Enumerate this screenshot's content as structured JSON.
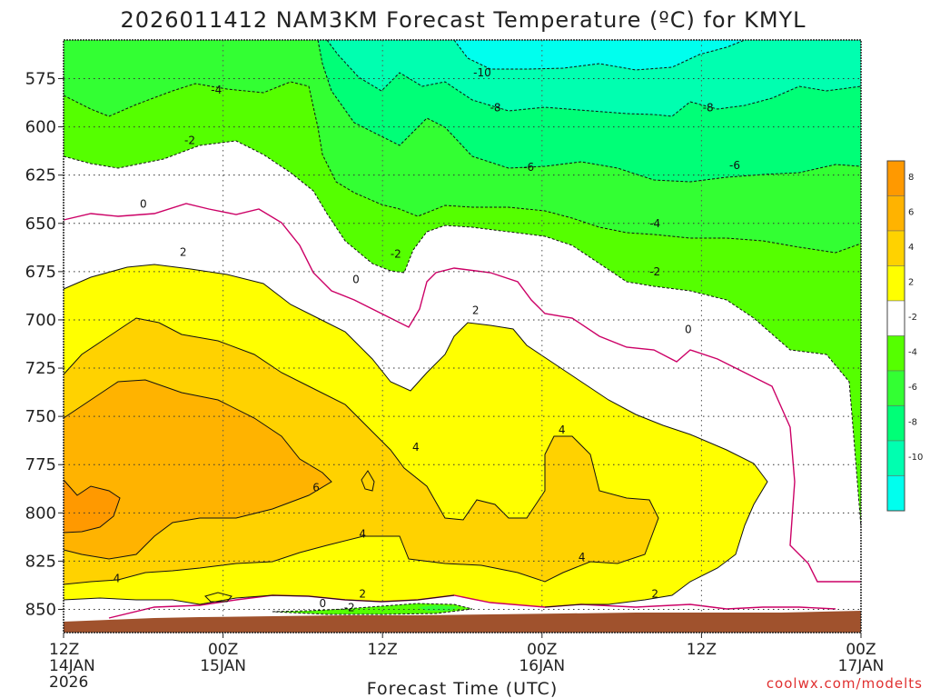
{
  "chart_data": {
    "type": "heatmap",
    "title": "2026011412 NAM3KM Forecast Temperature (ºC) for KMYL",
    "xlabel": "Forecast Time (UTC)",
    "ylabel": "",
    "credit": "coolwx.com/modelts",
    "y_axis": {
      "ticks": [
        575,
        600,
        625,
        650,
        675,
        700,
        725,
        750,
        775,
        800,
        825,
        850
      ],
      "range": [
        555,
        862
      ],
      "units": "hPa",
      "inverted": true
    },
    "x_axis": {
      "range_hours": [
        0,
        60
      ],
      "ticks": [
        {
          "hour": 0,
          "lines": [
            "12Z",
            "14JAN",
            "2026"
          ]
        },
        {
          "hour": 12,
          "lines": [
            "00Z",
            "15JAN"
          ]
        },
        {
          "hour": 24,
          "lines": [
            "12Z"
          ]
        },
        {
          "hour": 36,
          "lines": [
            "00Z",
            "16JAN"
          ]
        },
        {
          "hour": 48,
          "lines": [
            "12Z"
          ]
        },
        {
          "hour": 60,
          "lines": [
            "00Z",
            "17JAN"
          ]
        }
      ]
    },
    "grid": true,
    "legend": {
      "placement": "right",
      "bins": [
        {
          "label": "8",
          "color": "#ff9900"
        },
        {
          "label": "6",
          "color": "#ffb300"
        },
        {
          "label": "4",
          "color": "#ffd200"
        },
        {
          "label": "2",
          "color": "#ffff00"
        },
        {
          "label": "-2",
          "color": "#ffffff"
        },
        {
          "label": "-4",
          "color": "#55ff00"
        },
        {
          "label": "-6",
          "color": "#33ff33"
        },
        {
          "label": "-8",
          "color": "#00ff77"
        },
        {
          "label": "-10",
          "color": "#00ffb0"
        },
        {
          "label": "",
          "color": "#00ffee"
        }
      ]
    },
    "contour_labels": [
      {
        "text": "-10",
        "hour": 31.5,
        "p": 572
      },
      {
        "text": "-8",
        "hour": 32.5,
        "p": 590
      },
      {
        "text": "-8",
        "hour": 48.5,
        "p": 590
      },
      {
        "text": "-6",
        "hour": 35.0,
        "p": 621
      },
      {
        "text": "-6",
        "hour": 50.5,
        "p": 620
      },
      {
        "text": "-4",
        "hour": 11.5,
        "p": 581
      },
      {
        "text": "-4",
        "hour": 44.5,
        "p": 650
      },
      {
        "text": "-2",
        "hour": 9.5,
        "p": 607
      },
      {
        "text": "-2",
        "hour": 25.0,
        "p": 666
      },
      {
        "text": "-2",
        "hour": 44.5,
        "p": 675
      },
      {
        "text": "0",
        "hour": 6.0,
        "p": 640
      },
      {
        "text": "0",
        "hour": 22.0,
        "p": 679
      },
      {
        "text": "0",
        "hour": 47.0,
        "p": 705
      },
      {
        "text": "0",
        "hour": 19.5,
        "p": 847
      },
      {
        "text": "2",
        "hour": 9.0,
        "p": 665
      },
      {
        "text": "2",
        "hour": 31.0,
        "p": 695
      },
      {
        "text": "2",
        "hour": 22.5,
        "p": 842
      },
      {
        "text": "2",
        "hour": 44.5,
        "p": 842
      },
      {
        "text": "-2",
        "hour": 21.5,
        "p": 849
      },
      {
        "text": "4",
        "hour": 26.5,
        "p": 766
      },
      {
        "text": "4",
        "hour": 37.5,
        "p": 757
      },
      {
        "text": "4",
        "hour": 22.5,
        "p": 811
      },
      {
        "text": "4",
        "hour": 39.0,
        "p": 823
      },
      {
        "text": "4",
        "hour": 4.0,
        "p": 834
      },
      {
        "text": "6",
        "hour": 19.0,
        "p": 787
      }
    ],
    "cells": "filled temperature bands by pressure level and forecast hour, rendered as contour regions"
  }
}
